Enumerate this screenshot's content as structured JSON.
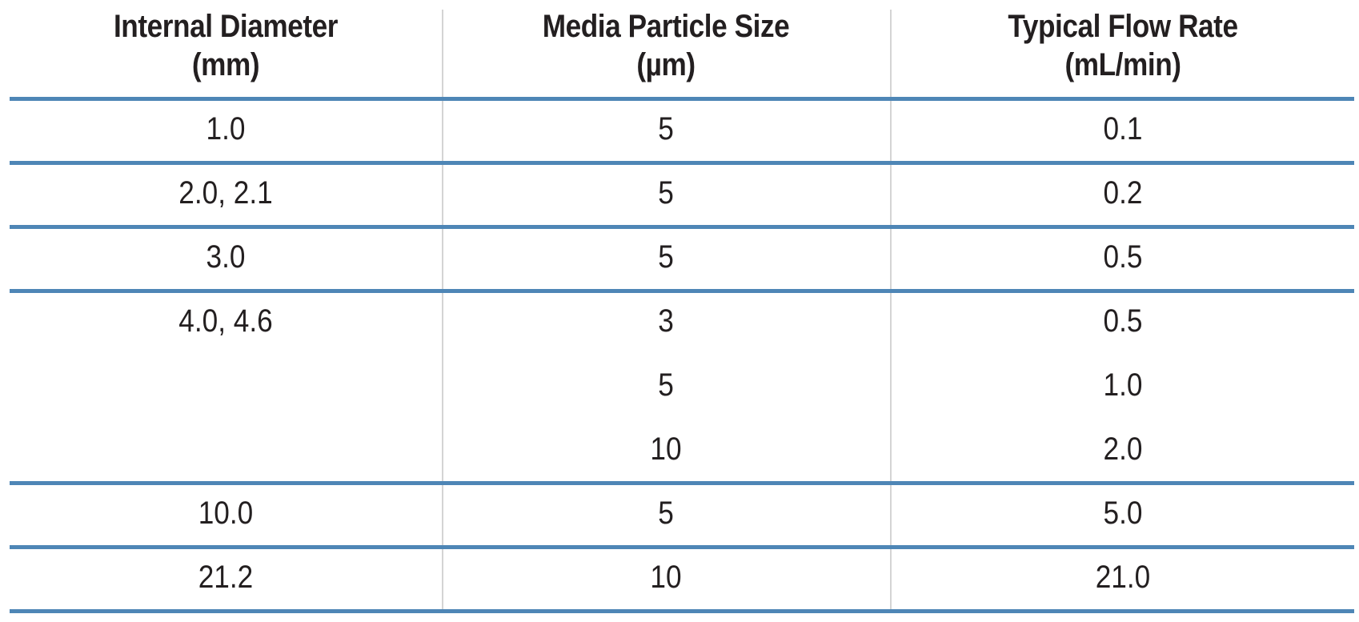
{
  "headers": [
    {
      "line1": "Internal Diameter",
      "line2": "(mm)"
    },
    {
      "line1": "Media Particle Size",
      "line2": "(µm)"
    },
    {
      "line1": "Typical Flow Rate",
      "line2": "(mL/min)"
    }
  ],
  "rows": [
    {
      "diameter": "1.0",
      "particle": "5",
      "flow": "0.1"
    },
    {
      "diameter": "2.0, 2.1",
      "particle": "5",
      "flow": "0.2"
    },
    {
      "diameter": "3.0",
      "particle": "5",
      "flow": "0.5"
    },
    {
      "diameter": "4.0, 4.6",
      "particle": "3",
      "flow": "0.5"
    },
    {
      "diameter": "",
      "particle": "5",
      "flow": "1.0"
    },
    {
      "diameter": "",
      "particle": "10",
      "flow": "2.0"
    },
    {
      "diameter": "10.0",
      "particle": "5",
      "flow": "5.0"
    },
    {
      "diameter": "21.2",
      "particle": "10",
      "flow": "21.0"
    }
  ],
  "colors": {
    "rule": "#4e86b6",
    "divider": "#d4d4d4",
    "text": "#231f20"
  }
}
